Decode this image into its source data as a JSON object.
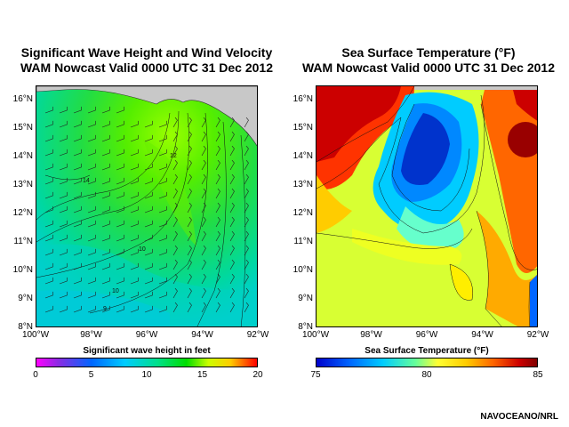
{
  "wave_panel": {
    "title_line1": "Significant Wave Height and Wind Velocity",
    "title_line2": "WAM Nowcast Valid 0000 UTC 31 Dec 2012",
    "colorbar_label": "Significant wave height in feet",
    "colorbar_ticks": [
      "0",
      "5",
      "10",
      "15",
      "20"
    ],
    "colorbar_range": [
      0,
      20
    ],
    "contour_labels": [
      "14",
      "12",
      "10",
      "10",
      "9"
    ]
  },
  "sst_panel": {
    "title_line1": "Sea Surface Temperature (°F)",
    "title_line2": "WAM Nowcast Valid 0000 UTC 31 Dec 2012",
    "colorbar_label": "Sea Surface Temperature (°F)",
    "colorbar_ticks": [
      "75",
      "80",
      "85"
    ],
    "colorbar_range": [
      75,
      85
    ]
  },
  "axes": {
    "lat_labels": [
      "16°N",
      "15°N",
      "14°N",
      "13°N",
      "12°N",
      "11°N",
      "10°N",
      "9°N",
      "8°N"
    ],
    "lon_labels": [
      "100°W",
      "98°W",
      "96°W",
      "94°W",
      "92°W"
    ],
    "lat_range": [
      8,
      16.5
    ],
    "lon_range": [
      -100,
      -92
    ]
  },
  "credit": "NAVOCEANO/NRL",
  "colors": {
    "land": "#c8c8c8",
    "wave_background": "#19e07a",
    "sst_background": "#d8ff33"
  }
}
